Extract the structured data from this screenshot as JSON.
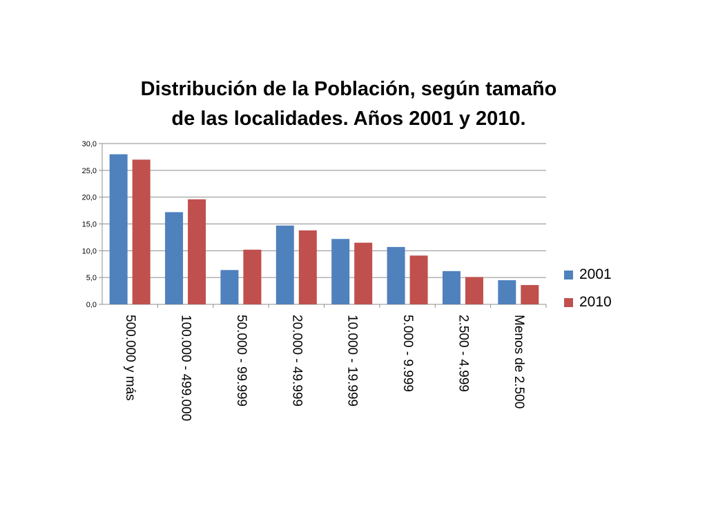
{
  "chart_data": {
    "type": "bar",
    "title_lines": [
      "Distribución de la Población, según tamaño",
      "de las localidades. Años 2001 y 2010."
    ],
    "categories": [
      "500.000 y más",
      "100.000 - 499.000",
      "50.000 - 99.999",
      "20.000 - 49.999",
      "10.000 - 19.999",
      "5.000 - 9.999",
      "2.500 - 4.999",
      "Menos de 2.500"
    ],
    "series": [
      {
        "name": "2001",
        "color": "#4f81bd",
        "values": [
          28.0,
          17.2,
          6.4,
          14.7,
          12.2,
          10.7,
          6.2,
          4.5
        ]
      },
      {
        "name": "2010",
        "color": "#c0504d",
        "values": [
          27.0,
          19.6,
          10.2,
          13.8,
          11.5,
          9.1,
          5.1,
          3.6
        ]
      }
    ],
    "yticks": [
      "0,0",
      "5,0",
      "10,0",
      "15,0",
      "20,0",
      "25,0",
      "30,0"
    ],
    "ylim": [
      0,
      30
    ],
    "grid": true,
    "legend_position": "right"
  }
}
